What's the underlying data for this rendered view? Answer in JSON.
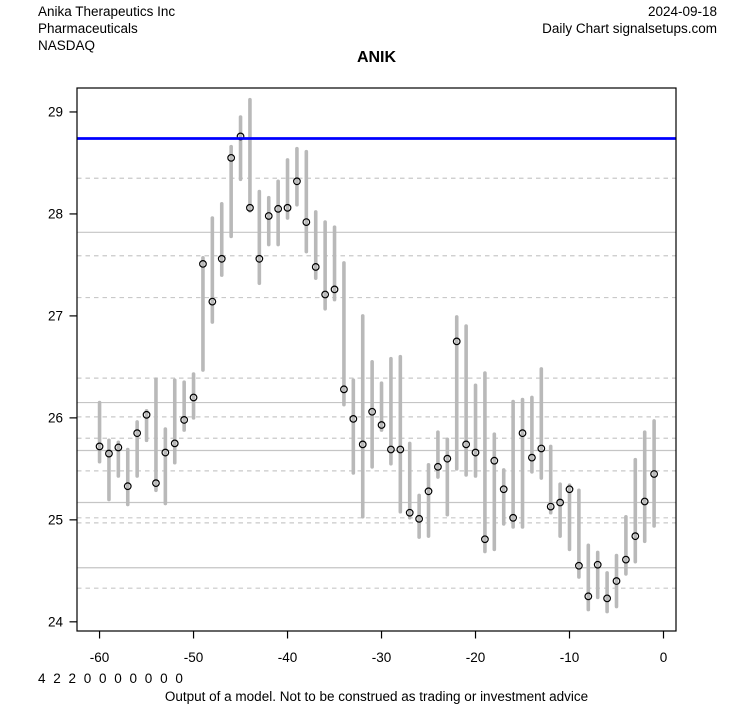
{
  "header": {
    "company": "Anika Therapeutics Inc",
    "sector": "Pharmaceuticals",
    "exchange": "NASDAQ",
    "date": "2024-09-18",
    "source": "Daily Chart signalsetups.com"
  },
  "chart_data": {
    "type": "bar",
    "subtype": "high-low-close",
    "title": "ANIK",
    "xlabel": "",
    "ylabel": "",
    "x_ticks": [
      -60,
      -50,
      -40,
      -30,
      -20,
      -10,
      0
    ],
    "y_ticks": [
      24,
      25,
      26,
      27,
      28,
      29
    ],
    "xlim": [
      -62.4,
      1.33
    ],
    "ylim": [
      23.91,
      29.235
    ],
    "grid": "horizontal support/resistance levels only",
    "legend": "none",
    "signal_line": {
      "value": 28.74,
      "color": "#0000FF",
      "style": "solid"
    },
    "solid_levels": [
      27.82,
      26.15,
      25.68,
      25.17,
      24.53
    ],
    "dashed_levels": [
      28.35,
      27.59,
      27.18,
      26.39,
      26.01,
      25.8,
      25.48,
      25.02,
      24.97,
      24.33
    ],
    "series": {
      "name": "ANIK daily high-low range with close marker",
      "x": [
        -60,
        -59,
        -58,
        -57,
        -56,
        -55,
        -54,
        -53,
        -52,
        -51,
        -50,
        -49,
        -48,
        -47,
        -46,
        -45,
        -44,
        -43,
        -42,
        -41,
        -40,
        -39,
        -38,
        -37,
        -36,
        -35,
        -34,
        -33,
        -32,
        -31,
        -30,
        -29,
        -28,
        -27,
        -26,
        -25,
        -24,
        -23,
        -22,
        -21,
        -20,
        -19,
        -18,
        -17,
        -16,
        -15,
        -14,
        -13,
        -12,
        -11,
        -10,
        -9,
        -8,
        -7,
        -6,
        -5,
        -4,
        -3,
        -2,
        -1
      ],
      "high": [
        26.15,
        25.78,
        25.76,
        25.69,
        25.96,
        26.07,
        26.38,
        25.89,
        26.37,
        26.35,
        26.43,
        27.57,
        27.96,
        28.1,
        28.66,
        28.95,
        29.12,
        28.22,
        28.16,
        28.32,
        28.53,
        28.64,
        28.61,
        28.02,
        27.92,
        27.87,
        27.52,
        26.37,
        27.0,
        26.55,
        26.34,
        26.58,
        26.6,
        25.75,
        25.24,
        25.54,
        25.86,
        25.79,
        26.99,
        26.9,
        26.32,
        26.44,
        25.84,
        25.49,
        26.16,
        26.18,
        26.2,
        26.48,
        25.72,
        25.35,
        25.34,
        25.29,
        24.75,
        24.68,
        24.48,
        24.65,
        25.03,
        25.59,
        25.86,
        25.97
      ],
      "low": [
        25.57,
        25.2,
        25.43,
        25.15,
        25.43,
        25.78,
        25.29,
        25.16,
        25.56,
        25.88,
        26.0,
        26.47,
        26.94,
        27.4,
        27.78,
        28.34,
        28.03,
        27.32,
        27.7,
        27.7,
        27.96,
        28.09,
        27.63,
        27.37,
        27.07,
        27.16,
        26.13,
        25.46,
        25.03,
        25.52,
        25.88,
        25.55,
        25.08,
        25.02,
        24.83,
        24.84,
        25.42,
        25.05,
        25.5,
        25.44,
        25.43,
        24.69,
        24.71,
        24.96,
        24.93,
        24.93,
        25.47,
        25.41,
        25.07,
        24.84,
        24.71,
        24.44,
        24.12,
        24.24,
        24.1,
        24.15,
        24.47,
        24.59,
        24.79,
        24.94
      ],
      "close": [
        25.72,
        25.65,
        25.71,
        25.33,
        25.85,
        26.03,
        25.36,
        25.66,
        25.75,
        25.98,
        26.2,
        27.51,
        27.14,
        27.56,
        28.55,
        28.76,
        28.06,
        27.56,
        27.98,
        28.05,
        28.06,
        28.32,
        27.92,
        27.48,
        27.21,
        27.26,
        26.28,
        25.99,
        25.74,
        26.06,
        25.93,
        25.69,
        25.69,
        25.07,
        25.01,
        25.28,
        25.52,
        25.6,
        26.75,
        25.74,
        25.66,
        24.81,
        25.58,
        25.3,
        25.02,
        25.85,
        25.61,
        25.7,
        25.13,
        25.17,
        25.3,
        24.55,
        24.25,
        24.56,
        24.23,
        24.4,
        24.61,
        24.84,
        25.18,
        25.45
      ]
    }
  },
  "colors": {
    "bar": "#b9b9b9",
    "close_marker_stroke": "#000000",
    "grid_solid": "#c5c5c5",
    "grid_dashed": "#c9c9c9",
    "signal_line": "#0000FF",
    "axis": "#000000",
    "background": "#ffffff"
  },
  "footer": {
    "model_output": "4 2 2 0 0 0 0 0 0 0",
    "disclaimer": "Output of a model. Not to be construed as trading or investment advice"
  }
}
